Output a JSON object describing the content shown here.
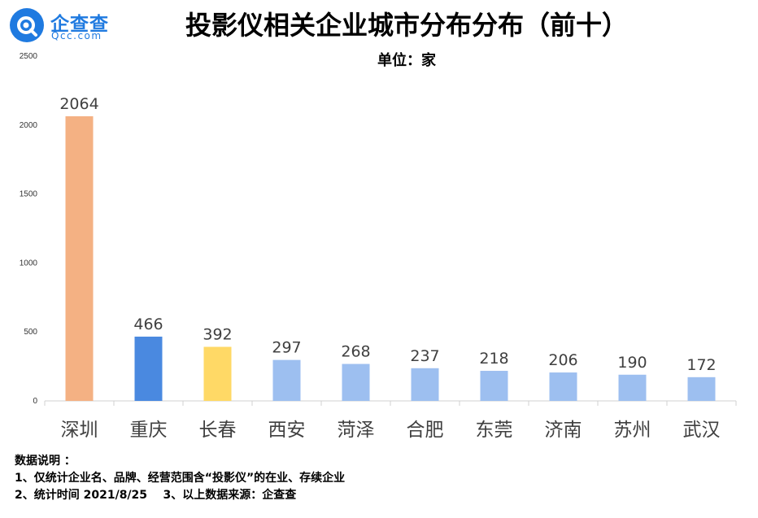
{
  "logo": {
    "name": "企查查",
    "domain": "Qcc.com"
  },
  "title": "投影仪相关企业城市分布分布（前十）",
  "unit_label": "单位：家",
  "colors": {
    "accent": "#1f7ae0"
  },
  "chart_data": {
    "type": "bar",
    "categories": [
      "深圳",
      "重庆",
      "长春",
      "西安",
      "菏泽",
      "合肥",
      "东莞",
      "济南",
      "苏州",
      "武汉"
    ],
    "values": [
      2064,
      466,
      392,
      297,
      268,
      237,
      218,
      206,
      190,
      172
    ],
    "colors": [
      "#f4b183",
      "#4a89e0",
      "#ffd966",
      "#9dbff0",
      "#9dbff0",
      "#9dbff0",
      "#9dbff0",
      "#9dbff0",
      "#9dbff0",
      "#9dbff0"
    ],
    "yticks": [
      0,
      500,
      1000,
      1500,
      2000,
      2500
    ],
    "ylim": [
      0,
      2500
    ],
    "title": "投影仪相关企业城市分布分布（前十）",
    "ylabel": "单位：家",
    "grid": false
  },
  "notes": {
    "heading": "数据说明 ：",
    "line1": "1、仅统计企业名、品牌、经营范围含“投影仪”的在业、存续企业",
    "line2": "2、统计时间 2021/8/25    3、以上数据来源：企查查"
  }
}
